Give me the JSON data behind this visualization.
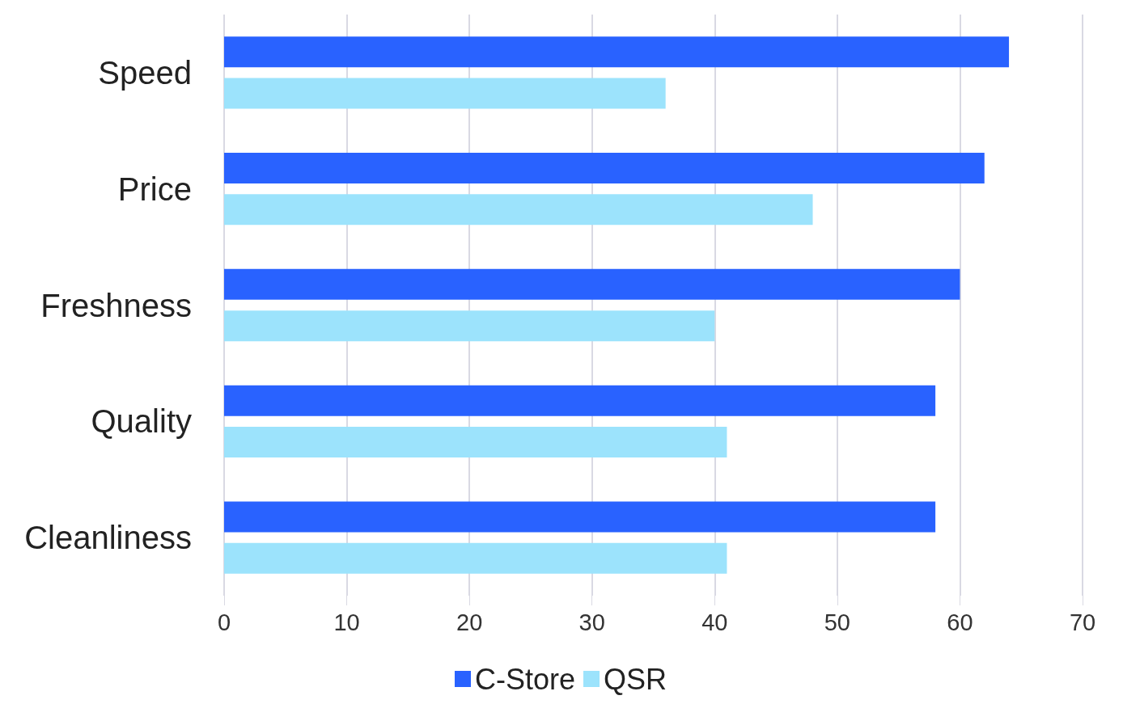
{
  "chart_data": {
    "type": "bar",
    "orientation": "horizontal",
    "categories": [
      "Speed",
      "Price",
      "Freshness",
      "Quality",
      "Cleanliness"
    ],
    "series": [
      {
        "name": "C-Store",
        "color": "#2962ff",
        "values": [
          64,
          62,
          60,
          58,
          58
        ]
      },
      {
        "name": "QSR",
        "color": "#9ce3fc",
        "values": [
          36,
          48,
          40,
          41,
          41
        ]
      }
    ],
    "xlim": [
      0,
      70
    ],
    "xticks": [
      0,
      10,
      20,
      30,
      40,
      50,
      60,
      70
    ],
    "grid": "x",
    "legend": "bottom"
  }
}
